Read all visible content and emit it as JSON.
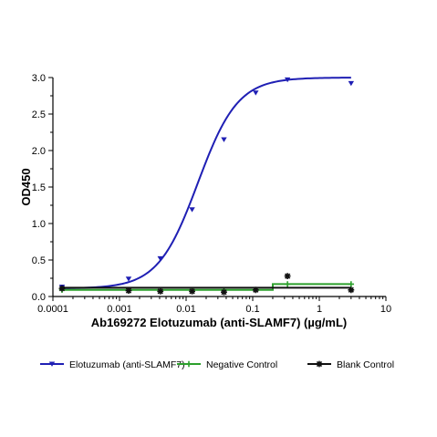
{
  "chart_data": {
    "type": "scatter",
    "xlabel": "Ab169272 Elotuzumab (anti-SLAMF7) (µg/mL)",
    "ylabel": "OD450",
    "xscale": "log",
    "xlim": [
      0.0001,
      10
    ],
    "ylim": [
      0,
      3.0
    ],
    "x_ticks": [
      0.0001,
      0.001,
      0.01,
      0.1,
      1,
      10
    ],
    "x_tick_labels": [
      "0.0001",
      "0.001",
      "0.01",
      "0.1",
      "1",
      "10"
    ],
    "y_ticks": [
      0,
      0.5,
      1.0,
      1.5,
      2.0,
      2.5,
      3.0
    ],
    "y_tick_labels": [
      "0.0",
      "0.5",
      "1.0",
      "1.5",
      "2.0",
      "2.5",
      "3.0"
    ],
    "grid": false,
    "legend_position": "bottom",
    "series": [
      {
        "name": "Elotuzumab (anti-SLAMF7)",
        "color": "#1f1fb4",
        "marker": "triangle-down",
        "x": [
          0.000137,
          0.00137,
          0.0041,
          0.0123,
          0.037,
          0.111,
          0.333,
          3.0
        ],
        "y": [
          0.13,
          0.24,
          0.52,
          1.19,
          2.15,
          2.79,
          2.97,
          2.92
        ],
        "fit": {
          "model": "4PL",
          "bottom": 0.11,
          "top": 3.0,
          "ec50": 0.015,
          "hill": 1.45
        }
      },
      {
        "name": "Negative Control",
        "color": "#2ca02c",
        "marker": "plus",
        "x": [
          0.000137,
          0.00137,
          0.0041,
          0.0123,
          0.037,
          0.111,
          0.333,
          3.0
        ],
        "y": [
          0.09,
          0.09,
          0.09,
          0.09,
          0.09,
          0.09,
          0.17,
          0.17
        ],
        "fit": {
          "model": "step",
          "x_breaks": [
            0.2
          ],
          "levels": [
            0.09,
            0.17
          ]
        }
      },
      {
        "name": "Blank Control",
        "color": "#111111",
        "marker": "star",
        "x": [
          0.000137,
          0.00137,
          0.0041,
          0.0123,
          0.037,
          0.111,
          0.333,
          3.0
        ],
        "y": [
          0.11,
          0.08,
          0.07,
          0.07,
          0.06,
          0.09,
          0.28,
          0.09
        ],
        "fit": {
          "model": "constant",
          "level": 0.12
        }
      }
    ]
  }
}
